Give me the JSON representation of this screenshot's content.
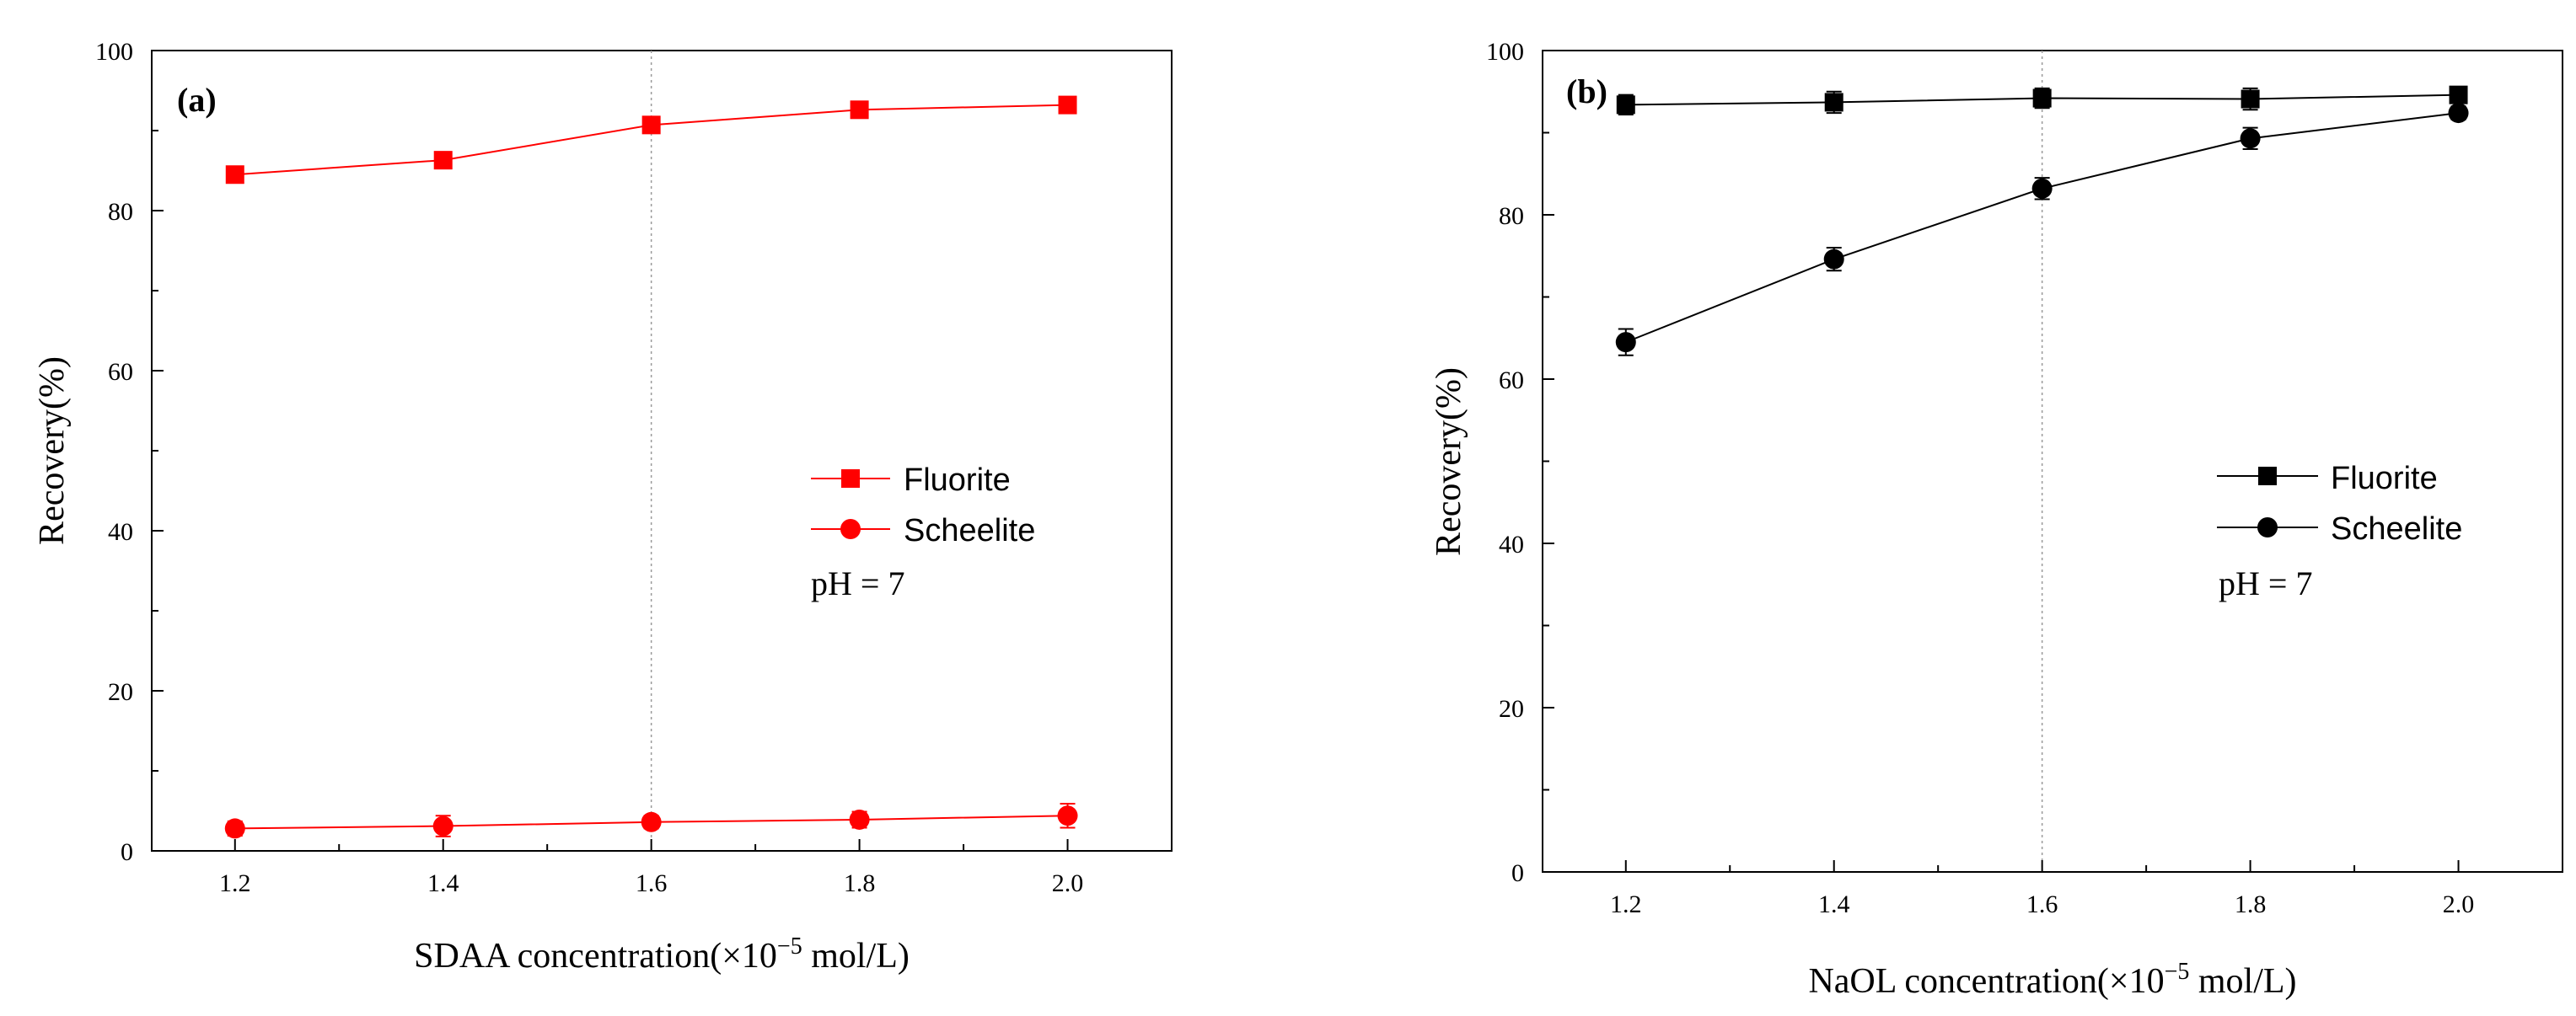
{
  "chart_data": [
    {
      "type": "line",
      "panel_label": "(a)",
      "xlabel_prefix": "SDAA concentration(×10",
      "xlabel_sup": "−5",
      "xlabel_suffix": " mol/L)",
      "ylabel": "Recovery(%)",
      "xlim": [
        1.12,
        2.1
      ],
      "ylim": [
        0,
        100
      ],
      "x_ticks": [
        "1.2",
        "1.4",
        "1.6",
        "1.8",
        "2.0"
      ],
      "y_ticks": [
        "0",
        "20",
        "40",
        "60",
        "80",
        "100"
      ],
      "x": [
        1.2,
        1.4,
        1.6,
        1.8,
        2.0
      ],
      "reference_line_x": 1.6,
      "color": "#ff0000",
      "series": [
        {
          "name": "Fluorite",
          "marker": "square",
          "values": [
            84.5,
            86.3,
            90.7,
            92.6,
            93.2
          ],
          "errors": [
            0.8,
            1.0,
            1.0,
            0.8,
            0.5
          ]
        },
        {
          "name": "Scheelite",
          "marker": "circle",
          "values": [
            2.8,
            3.1,
            3.6,
            3.9,
            4.4
          ],
          "errors": [
            0.9,
            1.3,
            0.8,
            1.0,
            1.5
          ]
        }
      ],
      "annotation": "pH = 7"
    },
    {
      "type": "line",
      "panel_label": "(b)",
      "xlabel_prefix": "NaOL concentration(×10",
      "xlabel_sup": "−5",
      "xlabel_suffix": " mol/L)",
      "ylabel": "Recovery(%)",
      "xlim": [
        1.12,
        2.1
      ],
      "ylim": [
        0,
        100
      ],
      "x_ticks": [
        "1.2",
        "1.4",
        "1.6",
        "1.8",
        "2.0"
      ],
      "y_ticks": [
        "0",
        "20",
        "40",
        "60",
        "80",
        "100"
      ],
      "x": [
        1.2,
        1.4,
        1.6,
        1.8,
        2.0
      ],
      "reference_line_x": 1.6,
      "color": "#000000",
      "series": [
        {
          "name": "Fluorite",
          "marker": "square",
          "values": [
            93.4,
            93.7,
            94.2,
            94.1,
            94.6
          ],
          "errors": [
            1.2,
            1.3,
            1.2,
            1.3,
            0.6
          ]
        },
        {
          "name": "Scheelite",
          "marker": "circle",
          "values": [
            64.5,
            74.6,
            83.2,
            89.3,
            92.4
          ],
          "errors": [
            1.6,
            1.4,
            1.3,
            1.3,
            0.8
          ]
        }
      ],
      "annotation": "pH = 7"
    }
  ]
}
